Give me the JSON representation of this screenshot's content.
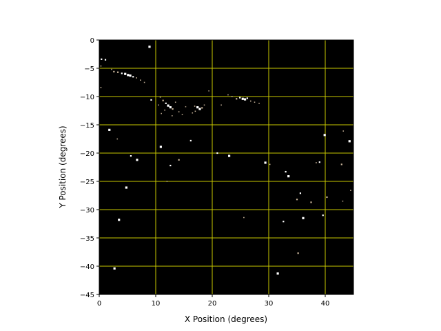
{
  "chart_data": {
    "type": "scatter",
    "title": "",
    "xlabel": "X Position (degrees)",
    "ylabel": "Y Position (degrees)",
    "xlim": [
      0,
      45
    ],
    "ylim": [
      -45,
      0
    ],
    "xticks": [
      0,
      10,
      20,
      30,
      40
    ],
    "yticks": [
      0,
      -5,
      -10,
      -15,
      -20,
      -25,
      -30,
      -35,
      -40,
      -45
    ],
    "xtick_labels": [
      "0",
      "10",
      "20",
      "30",
      "40"
    ],
    "ytick_labels": [
      "0",
      "−5",
      "−10",
      "−15",
      "−20",
      "−25",
      "−30",
      "−35",
      "−40",
      "−45"
    ],
    "grid": true,
    "colors": {
      "background": "#000000",
      "grid": "#c8c800",
      "star": "#ffffff",
      "faint_star": "#c8b49a"
    },
    "points_note_fields": [
      "x",
      "y",
      "brightness"
    ],
    "points": [
      [
        8.9,
        -1.2,
        1
      ],
      [
        1.8,
        -15.9,
        0.9
      ],
      [
        3.5,
        -31.8,
        1
      ],
      [
        4.8,
        -26.1,
        1
      ],
      [
        2.7,
        -40.4,
        0.9
      ],
      [
        6.7,
        -21.2,
        0.9
      ],
      [
        5.6,
        -20.5,
        0.8
      ],
      [
        10.9,
        -18.9,
        0.9
      ],
      [
        12.6,
        -22.2,
        0.8
      ],
      [
        14.1,
        -21.2,
        0.7
      ],
      [
        16.2,
        -17.8,
        0.8
      ],
      [
        20.9,
        -20,
        0.8
      ],
      [
        23,
        -20.5,
        0.9
      ],
      [
        29.4,
        -21.7,
        0.9
      ],
      [
        30.2,
        -22,
        0.6
      ],
      [
        33,
        -23.3,
        0.8
      ],
      [
        33.5,
        -24.1,
        1
      ],
      [
        35.6,
        -27.1,
        0.8
      ],
      [
        35,
        -28.2,
        0.7
      ],
      [
        37.5,
        -28.7,
        0.7
      ],
      [
        32.6,
        -32.1,
        0.8
      ],
      [
        36.1,
        -31.5,
        1
      ],
      [
        35.2,
        -37.7,
        0.7
      ],
      [
        31.6,
        -41.3,
        1
      ],
      [
        39.9,
        -16.8,
        0.9
      ],
      [
        44.3,
        -17.9,
        0.9
      ],
      [
        39,
        -21.6,
        0.8
      ],
      [
        38.4,
        -21.7,
        0.6
      ],
      [
        42.9,
        -22,
        0.7
      ],
      [
        40.3,
        -27.8,
        0.7
      ],
      [
        39.6,
        -31,
        0.8
      ],
      [
        25.6,
        -31.4,
        0.6
      ],
      [
        43.2,
        -16.1,
        0.5
      ],
      [
        44.5,
        -26.6,
        0.6
      ],
      [
        43.1,
        -28.5,
        0.5
      ],
      [
        3.2,
        -17.5,
        0.5
      ],
      [
        12,
        -25,
        0.4
      ],
      [
        0.4,
        -3.4,
        0.8
      ],
      [
        1.1,
        -3.5,
        0.8
      ],
      [
        0.3,
        -4.6,
        0.6
      ],
      [
        0.3,
        -8.4,
        0.6
      ],
      [
        2.6,
        -5.6,
        0.7
      ],
      [
        3.3,
        -5.7,
        0.7
      ],
      [
        4,
        -5.9,
        0.8
      ],
      [
        4.6,
        -6,
        0.9
      ],
      [
        5.1,
        -6.2,
        1
      ],
      [
        5.5,
        -6.3,
        0.9
      ],
      [
        6,
        -6.5,
        0.8
      ],
      [
        6.6,
        -6.7,
        0.6
      ],
      [
        7.3,
        -7.1,
        0.6
      ],
      [
        8,
        -7.5,
        0.5
      ],
      [
        2.2,
        -5.2,
        0.5
      ],
      [
        10.8,
        -10.1,
        0.6
      ],
      [
        11.3,
        -10.7,
        0.7
      ],
      [
        11.8,
        -11.2,
        0.8
      ],
      [
        12.2,
        -11.6,
        1
      ],
      [
        12.6,
        -11.9,
        0.9
      ],
      [
        13,
        -12.2,
        0.7
      ],
      [
        11.6,
        -12.4,
        0.6
      ],
      [
        13.5,
        -11,
        0.5
      ],
      [
        14.1,
        -12.7,
        0.6
      ],
      [
        14.7,
        -13.2,
        0.5
      ],
      [
        12.9,
        -13.4,
        0.5
      ],
      [
        11,
        -13,
        0.5
      ],
      [
        15.3,
        -11.8,
        0.4
      ],
      [
        10.5,
        -11.5,
        0.5
      ],
      [
        16.9,
        -11.7,
        0.6
      ],
      [
        17.4,
        -11.9,
        0.9
      ],
      [
        17.8,
        -12.2,
        1
      ],
      [
        18.2,
        -12,
        0.7
      ],
      [
        17,
        -12.6,
        0.6
      ],
      [
        18.6,
        -11.5,
        0.5
      ],
      [
        16.5,
        -12.9,
        0.5
      ],
      [
        23.5,
        -10,
        0.6
      ],
      [
        24.3,
        -10.4,
        0.7
      ],
      [
        24.9,
        -10.2,
        0.8
      ],
      [
        25.4,
        -10.4,
        1
      ],
      [
        25.8,
        -10.5,
        1
      ],
      [
        26.2,
        -10.3,
        0.8
      ],
      [
        26.8,
        -10.8,
        0.6
      ],
      [
        27.5,
        -11,
        0.5
      ],
      [
        28.3,
        -11.2,
        0.5
      ],
      [
        22.8,
        -9.7,
        0.5
      ],
      [
        21.6,
        -11.5,
        0.5
      ],
      [
        9.2,
        -10.6,
        0.8
      ],
      [
        19.4,
        -9,
        0.4
      ]
    ]
  }
}
